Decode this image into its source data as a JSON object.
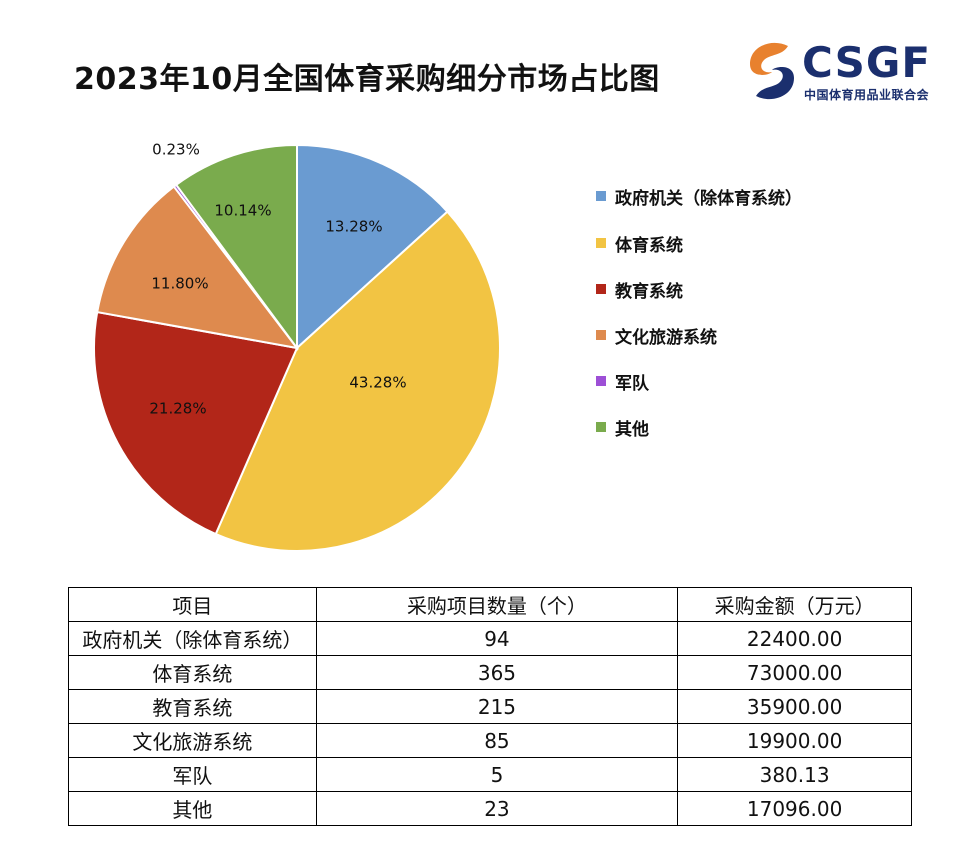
{
  "title": "2023年10月全国体育采购细分市场占比图",
  "logo": {
    "name": "CSGF",
    "subtitle": "中国体育用品业联合会"
  },
  "chart_data": {
    "type": "pie",
    "title": "2023年10月全国体育采购细分市场占比图",
    "slices": [
      {
        "name": "政府机关（除体育系统）",
        "value": 13.28,
        "label": "13.28%",
        "color": "#6a9bd1"
      },
      {
        "name": "体育系统",
        "value": 43.28,
        "label": "43.28%",
        "color": "#f2c443"
      },
      {
        "name": "教育系统",
        "value": 21.28,
        "label": "21.28%",
        "color": "#b22619"
      },
      {
        "name": "文化旅游系统",
        "value": 11.8,
        "label": "11.80%",
        "color": "#de8a4e"
      },
      {
        "name": "军队",
        "value": 0.23,
        "label": "0.23%",
        "color": "#9d4fd6"
      },
      {
        "name": "其他",
        "value": 10.14,
        "label": "10.14%",
        "color": "#7aab4d"
      }
    ],
    "legend_position": "right"
  },
  "table": {
    "headers": [
      "项目",
      "采购项目数量（个）",
      "采购金额（万元）"
    ],
    "rows": [
      [
        "政府机关（除体育系统）",
        "94",
        "22400.00"
      ],
      [
        "体育系统",
        "365",
        "73000.00"
      ],
      [
        "教育系统",
        "215",
        "35900.00"
      ],
      [
        "文化旅游系统",
        "85",
        "19900.00"
      ],
      [
        "军队",
        "5",
        "380.13"
      ],
      [
        "其他",
        "23",
        "17096.00"
      ]
    ]
  }
}
